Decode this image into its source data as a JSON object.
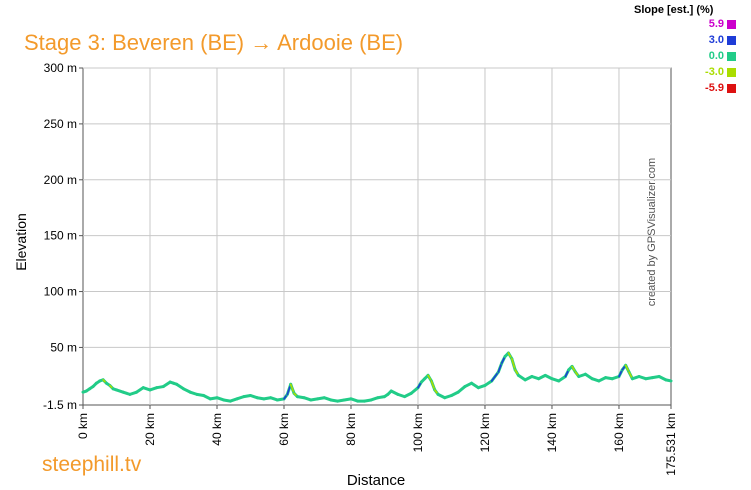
{
  "title": "Stage 3: Beveren (BE) → Ardooie (BE)",
  "site": "steephill.tv",
  "credit": "created by GPSVisualizer.com",
  "legend": {
    "title": "Slope [est.] (%)",
    "items": [
      {
        "label": "5.9",
        "color": "#CC00CC"
      },
      {
        "label": "3.0",
        "color": "#1E3CD7"
      },
      {
        "label": "0.0",
        "color": "#22CC88"
      },
      {
        "label": "-3.0",
        "color": "#AADD00"
      },
      {
        "label": "-5.9",
        "color": "#DD1111"
      }
    ]
  },
  "chart_data": {
    "type": "line",
    "xlabel": "Distance",
    "ylabel": "Elevation",
    "x_ticks": [
      "0 km",
      "20 km",
      "40 km",
      "60 km",
      "80 km",
      "100 km",
      "120 km",
      "140 km",
      "160 km",
      "175.531 km"
    ],
    "x_tick_values": [
      0,
      20,
      40,
      60,
      80,
      100,
      120,
      140,
      160,
      175.531
    ],
    "y_ticks": [
      "-1.5 m",
      "50 m",
      "100 m",
      "150 m",
      "200 m",
      "250 m",
      "300 m"
    ],
    "y_tick_values": [
      -1.5,
      50,
      100,
      150,
      200,
      250,
      300
    ],
    "xlim": [
      0,
      175.531
    ],
    "ylim": [
      -1.5,
      300
    ],
    "grid": true,
    "series": [
      {
        "x": [
          0,
          1,
          2,
          3,
          4,
          5,
          6,
          7,
          8,
          9,
          10,
          12,
          14,
          16,
          18,
          20,
          22,
          24,
          26,
          27,
          28,
          30,
          32,
          34,
          36,
          38,
          40,
          42,
          44,
          46,
          48,
          50,
          52,
          54,
          56,
          58,
          60,
          61,
          62,
          63,
          64,
          66,
          68,
          70,
          72,
          74,
          76,
          78,
          80,
          82,
          84,
          86,
          88,
          90,
          91,
          92,
          94,
          96,
          98,
          100,
          101,
          102,
          103,
          104,
          105,
          106,
          108,
          110,
          112,
          114,
          116,
          118,
          120,
          122,
          124,
          125,
          126,
          127,
          128,
          129,
          130,
          132,
          134,
          136,
          138,
          140,
          142,
          144,
          145,
          146,
          147,
          148,
          150,
          152,
          154,
          156,
          158,
          160,
          161,
          162,
          163,
          164,
          166,
          168,
          170,
          172,
          174,
          175.531
        ],
        "y": [
          10,
          11,
          13,
          15,
          18,
          20,
          21,
          18,
          16,
          13,
          12,
          10,
          8,
          10,
          14,
          12,
          14,
          15,
          19,
          18,
          17,
          13,
          10,
          8,
          7,
          4,
          5,
          3,
          2,
          4,
          6,
          7,
          5,
          4,
          5,
          3,
          4,
          8,
          17,
          9,
          6,
          5,
          3,
          4,
          5,
          3,
          2,
          3,
          4,
          2,
          2,
          3,
          5,
          6,
          8,
          11,
          8,
          6,
          9,
          14,
          19,
          22,
          25,
          20,
          12,
          8,
          5,
          7,
          10,
          15,
          18,
          14,
          16,
          20,
          28,
          36,
          42,
          45,
          40,
          30,
          25,
          21,
          24,
          22,
          25,
          22,
          20,
          24,
          30,
          33,
          28,
          24,
          26,
          22,
          20,
          23,
          22,
          24,
          30,
          34,
          28,
          22,
          24,
          22,
          23,
          24,
          21,
          20
        ]
      }
    ]
  }
}
